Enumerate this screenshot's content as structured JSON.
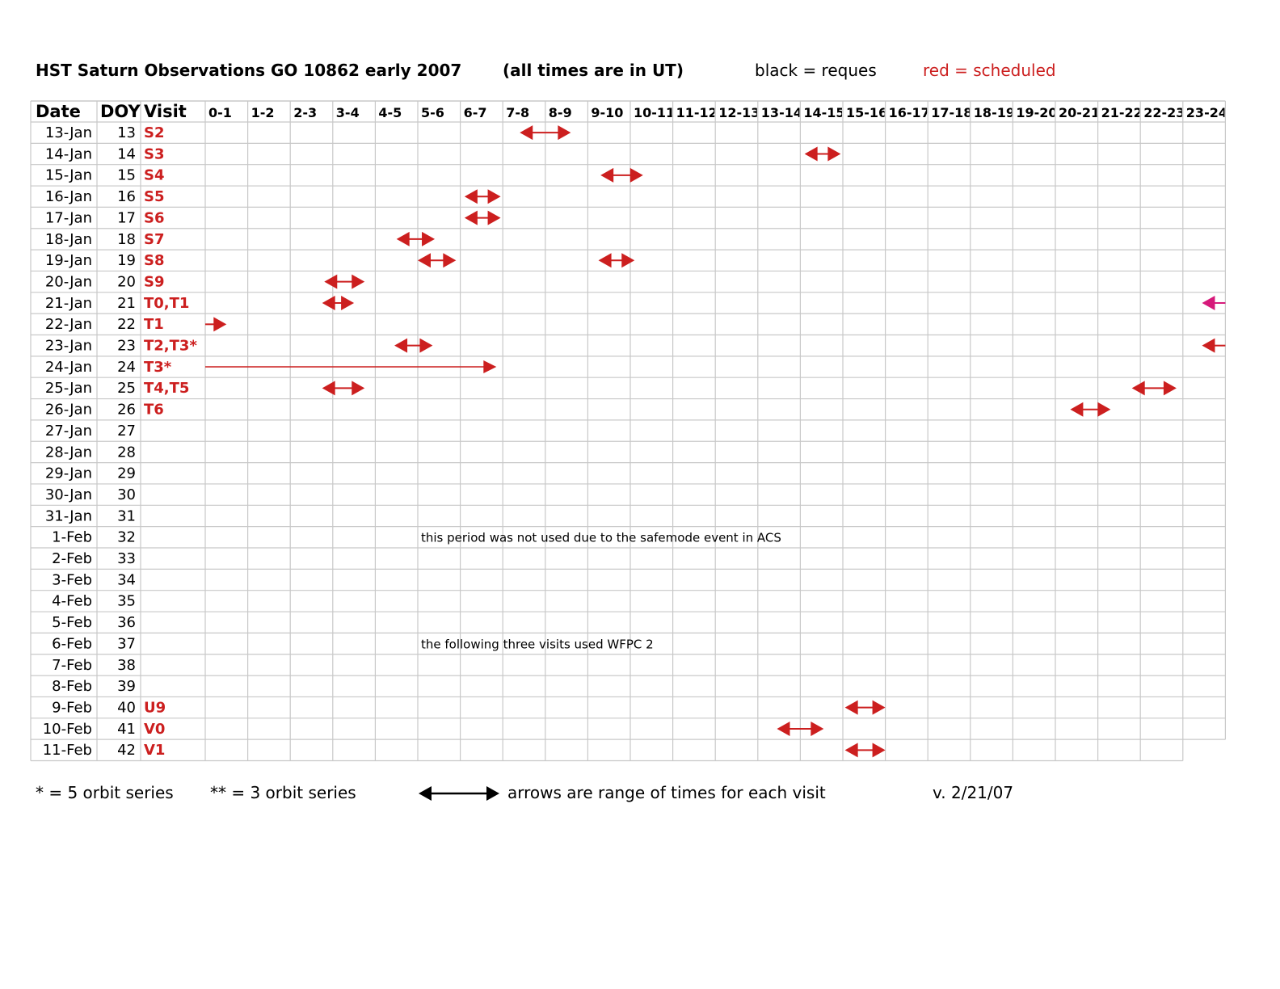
{
  "header": {
    "title": "HST Saturn Observations GO 10862 early 2007",
    "subtitle": "(all times are in UT)",
    "legend_black": "black = reques",
    "legend_red": "red = scheduled"
  },
  "table": {
    "col_date": "Date",
    "col_doy": "DOY",
    "col_visit": "Visit",
    "hours": [
      "0-1",
      "1-2",
      "2-3",
      "3-4",
      "4-5",
      "5-6",
      "6-7",
      "7-8",
      "8-9",
      "9-10",
      "10-11",
      "11-12",
      "12-13",
      "13-14",
      "14-15",
      "15-16",
      "16-17",
      "17-18",
      "18-19",
      "19-20",
      "20-21",
      "21-22",
      "22-23",
      "23-24"
    ],
    "rows": [
      {
        "date": "13-Jan",
        "doy": "13",
        "visit": "S2"
      },
      {
        "date": "14-Jan",
        "doy": "14",
        "visit": "S3"
      },
      {
        "date": "15-Jan",
        "doy": "15",
        "visit": "S4"
      },
      {
        "date": "16-Jan",
        "doy": "16",
        "visit": "S5"
      },
      {
        "date": "17-Jan",
        "doy": "17",
        "visit": "S6"
      },
      {
        "date": "18-Jan",
        "doy": "18",
        "visit": "S7"
      },
      {
        "date": "19-Jan",
        "doy": "19",
        "visit": "S8"
      },
      {
        "date": "20-Jan",
        "doy": "20",
        "visit": "S9"
      },
      {
        "date": "21-Jan",
        "doy": "21",
        "visit": "T0,T1"
      },
      {
        "date": "22-Jan",
        "doy": "22",
        "visit": "T1"
      },
      {
        "date": "23-Jan",
        "doy": "23",
        "visit": "T2,T3*"
      },
      {
        "date": "24-Jan",
        "doy": "24",
        "visit": "T3*"
      },
      {
        "date": "25-Jan",
        "doy": "25",
        "visit": "T4,T5"
      },
      {
        "date": "26-Jan",
        "doy": "26",
        "visit": "T6"
      },
      {
        "date": "27-Jan",
        "doy": "27",
        "visit": ""
      },
      {
        "date": "28-Jan",
        "doy": "28",
        "visit": ""
      },
      {
        "date": "29-Jan",
        "doy": "29",
        "visit": ""
      },
      {
        "date": "30-Jan",
        "doy": "30",
        "visit": ""
      },
      {
        "date": "31-Jan",
        "doy": "31",
        "visit": ""
      },
      {
        "date": "1-Feb",
        "doy": "32",
        "visit": ""
      },
      {
        "date": "2-Feb",
        "doy": "33",
        "visit": ""
      },
      {
        "date": "3-Feb",
        "doy": "34",
        "visit": ""
      },
      {
        "date": "4-Feb",
        "doy": "35",
        "visit": ""
      },
      {
        "date": "5-Feb",
        "doy": "36",
        "visit": ""
      },
      {
        "date": "6-Feb",
        "doy": "37",
        "visit": ""
      },
      {
        "date": "7-Feb",
        "doy": "38",
        "visit": ""
      },
      {
        "date": "8-Feb",
        "doy": "39",
        "visit": ""
      },
      {
        "date": "9-Feb",
        "doy": "40",
        "visit": "U9"
      },
      {
        "date": "10-Feb",
        "doy": "41",
        "visit": "V0"
      },
      {
        "date": "11-Feb",
        "doy": "42",
        "visit": "V1"
      }
    ],
    "notes": [
      {
        "row": 19,
        "startHour": 5,
        "text": "this period was not used due to the safemode event in ACS"
      },
      {
        "row": 24,
        "startHour": 5,
        "text": "the following three visits used WFPC 2"
      }
    ],
    "arrows": [
      {
        "row": 0,
        "start": 7.4,
        "end": 8.6,
        "style": "double",
        "color": "#cc1f1f"
      },
      {
        "row": 1,
        "start": 14.1,
        "end": 14.95,
        "style": "double",
        "color": "#cc1f1f"
      },
      {
        "row": 2,
        "start": 9.3,
        "end": 10.3,
        "style": "double",
        "color": "#cc1f1f"
      },
      {
        "row": 3,
        "start": 6.1,
        "end": 6.95,
        "style": "double",
        "color": "#cc1f1f"
      },
      {
        "row": 4,
        "start": 6.1,
        "end": 6.95,
        "style": "double",
        "color": "#cc1f1f"
      },
      {
        "row": 5,
        "start": 4.5,
        "end": 5.4,
        "style": "double",
        "color": "#cc1f1f"
      },
      {
        "row": 6,
        "start": 5.0,
        "end": 5.9,
        "style": "double",
        "color": "#cc1f1f"
      },
      {
        "row": 6,
        "start": 9.25,
        "end": 10.1,
        "style": "double",
        "color": "#cc1f1f"
      },
      {
        "row": 7,
        "start": 2.8,
        "end": 3.75,
        "style": "double",
        "color": "#cc1f1f"
      },
      {
        "row": 8,
        "start": 2.75,
        "end": 3.5,
        "style": "double",
        "color": "#cc1f1f"
      },
      {
        "row": 8,
        "start": 23.45,
        "end": 24.0,
        "style": "left",
        "color": "#d6197a"
      },
      {
        "row": 9,
        "start": 0.0,
        "end": 0.5,
        "style": "right",
        "color": "#cc1f1f"
      },
      {
        "row": 10,
        "start": 4.45,
        "end": 5.35,
        "style": "double",
        "color": "#cc1f1f"
      },
      {
        "row": 10,
        "start": 23.45,
        "end": 24.0,
        "style": "left",
        "color": "#cc1f1f"
      },
      {
        "row": 11,
        "start": 0.0,
        "end": 6.85,
        "style": "right-thin",
        "color": "#cc1f1f"
      },
      {
        "row": 12,
        "start": 2.75,
        "end": 3.75,
        "style": "double",
        "color": "#cc1f1f"
      },
      {
        "row": 12,
        "start": 21.8,
        "end": 22.85,
        "style": "double",
        "color": "#cc1f1f"
      },
      {
        "row": 13,
        "start": 20.35,
        "end": 21.3,
        "style": "double",
        "color": "#cc1f1f"
      },
      {
        "row": 27,
        "start": 15.05,
        "end": 16.0,
        "style": "double",
        "color": "#cc1f1f"
      },
      {
        "row": 28,
        "start": 13.45,
        "end": 14.55,
        "style": "double",
        "color": "#cc1f1f"
      },
      {
        "row": 29,
        "start": 15.05,
        "end": 16.0,
        "style": "double",
        "color": "#cc1f1f"
      }
    ]
  },
  "footer": {
    "orbit5": "* = 5 orbit series",
    "orbit3": "** = 3 orbit series",
    "arrow_caption": "arrows are range of times for each visit",
    "version": "v. 2/21/07"
  },
  "colors": {
    "scheduled_red": "#cc1f1f",
    "grid_gray": "#c8c8c8",
    "pink": "#d6197a"
  }
}
